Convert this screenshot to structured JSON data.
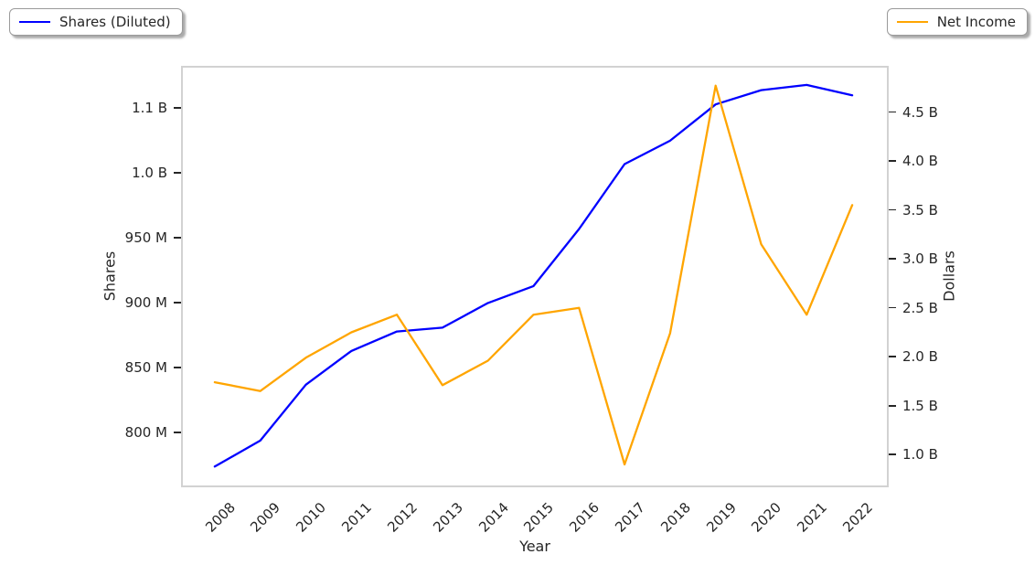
{
  "legend_left": {
    "label": "Shares (Diluted)"
  },
  "legend_right": {
    "label": "Net Income"
  },
  "chart_data": {
    "type": "line",
    "title": "",
    "xlabel": "Year",
    "ylabel_left": "Shares",
    "ylabel_right": "Dollars",
    "grid": false,
    "legend_position": "outside top-left and outside top-right",
    "x": [
      2008,
      2009,
      2010,
      2011,
      2012,
      2013,
      2014,
      2015,
      2016,
      2017,
      2018,
      2019,
      2020,
      2021,
      2022
    ],
    "xticklabels": [
      "2008",
      "2009",
      "2010",
      "2011",
      "2012",
      "2013",
      "2014",
      "2015",
      "2016",
      "2017",
      "2018",
      "2019",
      "2020",
      "2021",
      "2022"
    ],
    "series": [
      {
        "name": "Shares (Diluted)",
        "axis": "left",
        "unit": "millions of shares",
        "color": "#0000ff",
        "values": [
          774,
          794,
          837,
          863,
          878,
          881,
          900,
          913,
          957,
          1007,
          1025,
          1053,
          1064,
          1068,
          1060
        ]
      },
      {
        "name": "Net Income",
        "axis": "right",
        "unit": "billions of dollars",
        "color": "#ffa500",
        "values": [
          1.74,
          1.65,
          1.99,
          2.25,
          2.43,
          1.71,
          1.96,
          2.43,
          2.5,
          0.9,
          2.24,
          4.77,
          3.15,
          2.43,
          3.55
        ]
      }
    ],
    "xlim": [
      2007.3,
      2022.76
    ],
    "ylim_left": [
      759.4,
      1081.3
    ],
    "ylim_right": [
      0.685,
      4.954
    ],
    "yticks_left": {
      "values": [
        800,
        850,
        900,
        950,
        1000,
        1050
      ],
      "labels": [
        "800 M",
        "850 M",
        "900 M",
        "950 M",
        "1.0 B",
        "1.1 B"
      ]
    },
    "yticks_right": {
      "values": [
        1.0,
        1.5,
        2.0,
        2.5,
        3.0,
        3.5,
        4.0,
        4.5
      ],
      "labels": [
        "1.0 B",
        "1.5 B",
        "2.0 B",
        "2.5 B",
        "3.0 B",
        "3.5 B",
        "4.0 B",
        "4.5 B"
      ]
    }
  }
}
